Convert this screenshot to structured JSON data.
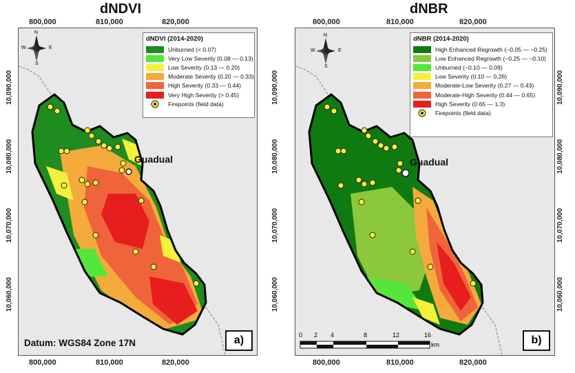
{
  "left_panel": {
    "title": "dNDVI",
    "x_ticks": [
      "800,000",
      "810,000",
      "820,000"
    ],
    "y_ticks": [
      "10,090,000",
      "10,080,000",
      "10,070,000",
      "10,060,000"
    ],
    "legend": {
      "title": "dNDVI (2014-2020)",
      "items": [
        {
          "label": "Unburned (< 0.07)",
          "color": "#1e8c1e"
        },
        {
          "label": "Very Low Severity (0.08 — 0.13)",
          "color": "#55e63c"
        },
        {
          "label": "Low Severity (0.13 — 0.20)",
          "color": "#f5f03c"
        },
        {
          "label": "Moderate Severity (0.20 — 0.33)",
          "color": "#f5aa3c"
        },
        {
          "label": "High Severity (0.33 — 0.44)",
          "color": "#f0643c"
        },
        {
          "label": "Very High Severity (> 0.45)",
          "color": "#e61e1e"
        }
      ],
      "firepoints": "Firepoints (field data)"
    },
    "town": "Guadual",
    "datum": "Datum: WGS84 Zone 17N",
    "panel_label": "a)"
  },
  "right_panel": {
    "title": "dNBR",
    "x_ticks": [
      "800,000",
      "810,000",
      "820,000"
    ],
    "y_ticks": [
      "10,090,000",
      "10,080,000",
      "10,070,000",
      "10,060,000"
    ],
    "legend": {
      "title": "dNBR (2014-2020)",
      "items": [
        {
          "label": "High Enhanced Regrowth (−0.05 — −0.25)",
          "color": "#0f7a0f"
        },
        {
          "label": "Low Enhanced Regrowth (−0.25 — −0.10)",
          "color": "#8cc83c"
        },
        {
          "label": "Unburned (−0.10 — 0.09)",
          "color": "#55e63c"
        },
        {
          "label": "Low Severity (0.10 — 0.26)",
          "color": "#f5f03c"
        },
        {
          "label": "Moderate-Low Severity (0.27 — 0.43)",
          "color": "#f5aa3c"
        },
        {
          "label": "Moderate-High Severity (0.44 — 0.65)",
          "color": "#f0643c"
        },
        {
          "label": "High Severity (0.65 — 1.3)",
          "color": "#e61e1e"
        }
      ],
      "firepoints": "Firepoints (field data)"
    },
    "town": "Guadual",
    "panel_label": "b)",
    "scale": {
      "labels": [
        "0",
        "2",
        "4",
        "8",
        "12",
        "16"
      ],
      "unit": "km"
    }
  },
  "compass": {
    "n": "N",
    "s": "S",
    "e": "E",
    "w": "W"
  }
}
